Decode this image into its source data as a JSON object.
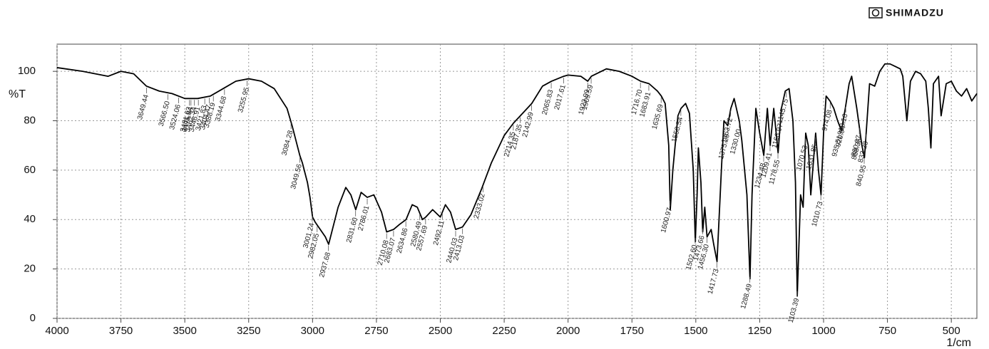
{
  "brand": "SHIMADZU",
  "chart_data": {
    "type": "line",
    "y_label": "%T",
    "x_label": "1/cm",
    "xlim": [
      4000,
      400
    ],
    "ylim": [
      0,
      111
    ],
    "xticks": [
      4000,
      3750,
      3500,
      3250,
      3000,
      2750,
      2500,
      2250,
      2000,
      1750,
      1500,
      1250,
      1000,
      750,
      500
    ],
    "yticks": [
      0,
      20,
      40,
      60,
      80,
      100
    ],
    "grid": true,
    "color": "#000000",
    "x": [
      4000,
      3900,
      3850,
      3800,
      3750,
      3700,
      3650,
      3600,
      3550,
      3500,
      3450,
      3400,
      3350,
      3300,
      3250,
      3200,
      3150,
      3100,
      3080,
      3050,
      3040,
      3020,
      3010,
      3000,
      2990,
      2970,
      2950,
      2937,
      2900,
      2870,
      2850,
      2831,
      2810,
      2786,
      2760,
      2730,
      2710,
      2683,
      2660,
      2634,
      2610,
      2590,
      2570,
      2557,
      2530,
      2500,
      2480,
      2460,
      2440,
      2413,
      2380,
      2340,
      2300,
      2250,
      2214,
      2187,
      2142,
      2100,
      2065,
      2017,
      2000,
      1950,
      1923,
      1909,
      1850,
      1800,
      1750,
      1716,
      1683,
      1650,
      1635,
      1620,
      1606,
      1600,
      1590,
      1570,
      1558,
      1540,
      1525,
      1510,
      1502,
      1495,
      1490,
      1480,
      1473,
      1465,
      1456,
      1440,
      1430,
      1417,
      1400,
      1390,
      1375,
      1363,
      1350,
      1330,
      1320,
      1300,
      1288,
      1280,
      1265,
      1250,
      1234,
      1220,
      1209,
      1195,
      1178,
      1165,
      1150,
      1135,
      1120,
      1110,
      1103,
      1090,
      1080,
      1070,
      1060,
      1050,
      1031,
      1020,
      1010,
      1000,
      990,
      975,
      960,
      945,
      930,
      915,
      900,
      890,
      870,
      850,
      840,
      830,
      820,
      800,
      780,
      760,
      740,
      720,
      700,
      690,
      674,
      660,
      640,
      620,
      600,
      590,
      580,
      570,
      550,
      540,
      520,
      500,
      480,
      460,
      440,
      420,
      400
    ],
    "values": [
      101.5,
      100,
      99,
      98,
      100,
      99,
      94,
      92,
      91,
      89,
      89,
      90,
      93,
      96,
      97,
      96,
      93,
      85,
      78,
      66,
      63,
      55,
      49,
      41,
      39,
      36,
      33,
      30,
      45,
      53,
      50,
      44,
      51,
      49,
      50,
      43,
      35,
      36,
      38,
      40,
      46,
      45,
      40,
      41,
      44,
      41,
      46,
      43,
      36,
      37,
      42,
      52,
      63,
      74,
      79,
      82,
      87,
      94,
      96,
      98,
      98.5,
      98,
      96,
      98,
      101,
      100,
      98,
      96,
      95,
      92,
      90,
      87,
      70,
      44,
      60,
      82,
      85,
      87,
      83,
      60,
      31,
      50,
      69,
      55,
      35,
      45,
      33,
      36,
      30,
      23,
      60,
      80,
      78,
      85,
      89,
      80,
      72,
      50,
      16,
      50,
      85,
      75,
      66,
      85,
      70,
      85,
      67,
      85,
      92,
      93,
      80,
      55,
      9,
      50,
      45,
      75,
      70,
      50,
      75,
      60,
      50,
      75,
      90,
      88,
      85,
      80,
      76,
      85,
      95,
      98,
      85,
      70,
      65,
      80,
      95,
      94,
      100,
      103,
      103,
      102,
      101,
      98,
      80,
      96,
      100,
      99,
      96,
      85,
      69,
      95,
      98,
      82,
      95,
      96,
      92,
      90,
      93,
      88,
      91
    ],
    "peaks": [
      3649.44,
      {
        "value": 3566.5,
        "label": "3566.50"
      },
      3524.06,
      3481.63,
      3475.84,
      3462.34,
      3446.91,
      3421.83,
      3404.47,
      3388.19,
      3344.68,
      3255.95,
      3084.28,
      3049.56,
      3001.24,
      2982.05,
      2937.68,
      {
        "value": 2831.6,
        "label": "2831.60"
      },
      2786.01,
      2710.08,
      2683.07,
      2634.86,
      2580.49,
      2557.69,
      2492.11,
      2440.03,
      2413.03,
      2333.02,
      2214.35,
      2187.35,
      2142.99,
      2065.83,
      2017.61,
      1923.09,
      1909.59,
      {
        "value": 1716.7,
        "label": "1716.70"
      },
      1683.91,
      1635.69,
      1600.97,
      1558.54,
      {
        "value": 1502.6,
        "label": "1502.60"
      },
      1473.66,
      {
        "value": 1456.3,
        "label": "1456.30"
      },
      1417.73,
      1375.29,
      1363.72,
      {
        "value": 1330,
        "label": "1330.00"
      },
      1288.49,
      1234.48,
      1209.41,
      1178.55,
      1166.97,
      1145.75,
      1103.39,
      1070.53,
      1031.85,
      1010.73,
      974.08,
      920.94,
      935.51,
      913.16,
      860.07,
      858.35,
      840.95,
      833.28
    ]
  }
}
